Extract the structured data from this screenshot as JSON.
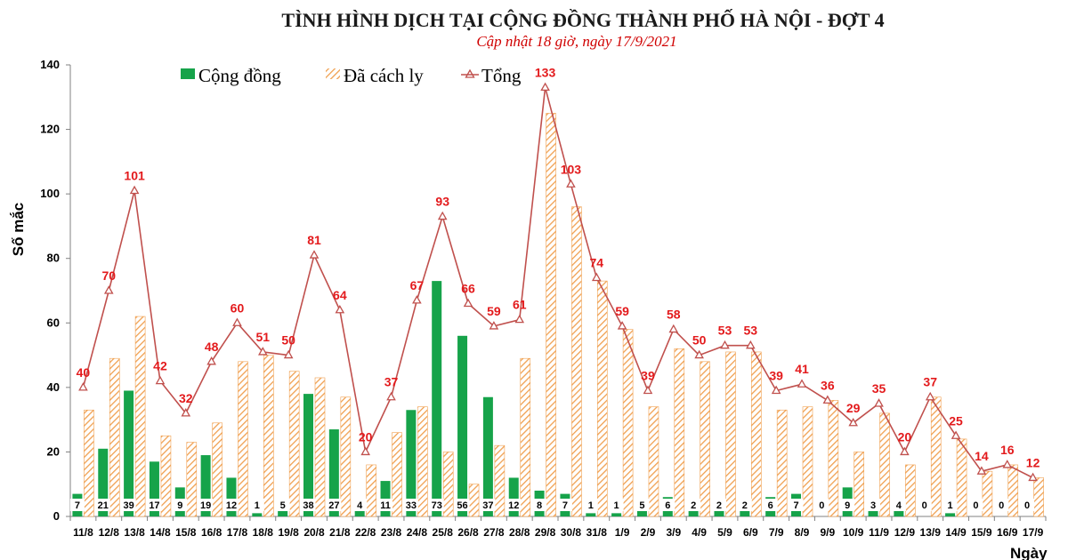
{
  "chart_data": {
    "type": "bar",
    "title": "TÌNH HÌNH DỊCH TẠI CỘNG ĐỒNG THÀNH PHỐ HÀ NỘI - ĐỢT 4",
    "subtitle": "Cập nhật 18 giờ, ngày 17/9/2021",
    "xlabel": "Ngày",
    "ylabel": "Số mắc",
    "ylim": [
      0,
      140
    ],
    "yticks": [
      0,
      20,
      40,
      60,
      80,
      100,
      120,
      140
    ],
    "grid": false,
    "legend_position": "top-left",
    "categories": [
      "11/8",
      "12/8",
      "13/8",
      "14/8",
      "15/8",
      "16/8",
      "17/8",
      "18/8",
      "19/8",
      "20/8",
      "21/8",
      "22/8",
      "23/8",
      "24/8",
      "25/8",
      "26/8",
      "27/8",
      "28/8",
      "29/8",
      "30/8",
      "31/8",
      "1/9",
      "2/9",
      "3/9",
      "4/9",
      "5/9",
      "6/9",
      "7/9",
      "8/9",
      "9/9",
      "10/9",
      "11/9",
      "12/9",
      "13/9",
      "14/9",
      "15/9",
      "16/9",
      "17/9"
    ],
    "series": [
      {
        "name": "Cộng đồng",
        "type": "bar",
        "color": "#16a34a",
        "values": [
          7,
          21,
          39,
          17,
          9,
          19,
          12,
          1,
          5,
          38,
          27,
          4,
          11,
          33,
          73,
          56,
          37,
          12,
          8,
          7,
          1,
          1,
          5,
          6,
          2,
          2,
          2,
          6,
          7,
          0,
          9,
          3,
          4,
          0,
          1,
          0,
          0,
          0
        ]
      },
      {
        "name": "Đã cách ly",
        "type": "bar",
        "color": "#f5a04a",
        "values": [
          33,
          49,
          62,
          25,
          23,
          29,
          48,
          50,
          45,
          43,
          37,
          16,
          26,
          34,
          20,
          10,
          22,
          49,
          125,
          96,
          73,
          58,
          34,
          52,
          48,
          51,
          51,
          33,
          34,
          36,
          20,
          32,
          16,
          37,
          24,
          14,
          16,
          12
        ]
      },
      {
        "name": "Tổng",
        "type": "line",
        "color": "#c0504d",
        "values": [
          40,
          70,
          101,
          42,
          32,
          48,
          60,
          51,
          50,
          81,
          64,
          20,
          37,
          67,
          93,
          66,
          59,
          61,
          133,
          103,
          74,
          59,
          39,
          58,
          50,
          53,
          53,
          39,
          41,
          36,
          29,
          35,
          20,
          37,
          25,
          14,
          16,
          12
        ]
      }
    ]
  }
}
